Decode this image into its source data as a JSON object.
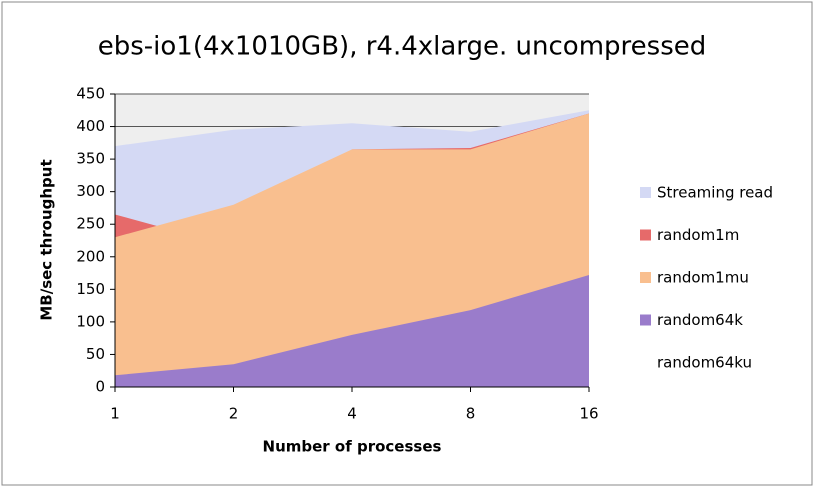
{
  "chart_data": {
    "type": "area",
    "title": "ebs-io1(4x1010GB), r4.4xlarge. uncompressed",
    "x_label": "Number of processes",
    "y_label": "MB/sec throughput",
    "categories": [
      "1",
      "2",
      "4",
      "8",
      "16"
    ],
    "series": [
      {
        "name": "Streaming read",
        "color": "#d4d9f4",
        "values": [
          370,
          395,
          405,
          392,
          425
        ]
      },
      {
        "name": "random1m",
        "color": "#e66a6a",
        "values": [
          265,
          215,
          365,
          367,
          420
        ]
      },
      {
        "name": "random1mu",
        "color": "#f9bf8f",
        "values": [
          230,
          280,
          365,
          365,
          420
        ]
      },
      {
        "name": "random64k",
        "color": "#9a7ccb",
        "values": [
          18,
          35,
          80,
          118,
          172
        ]
      },
      {
        "name": "random64ku",
        "color": "#ffffff",
        "values": [
          null,
          null,
          null,
          null,
          null
        ]
      }
    ],
    "ylim": [
      0,
      450
    ],
    "yticks": [
      0,
      50,
      100,
      150,
      200,
      250,
      300,
      350,
      400,
      450
    ],
    "grid": true,
    "legend": "right"
  }
}
